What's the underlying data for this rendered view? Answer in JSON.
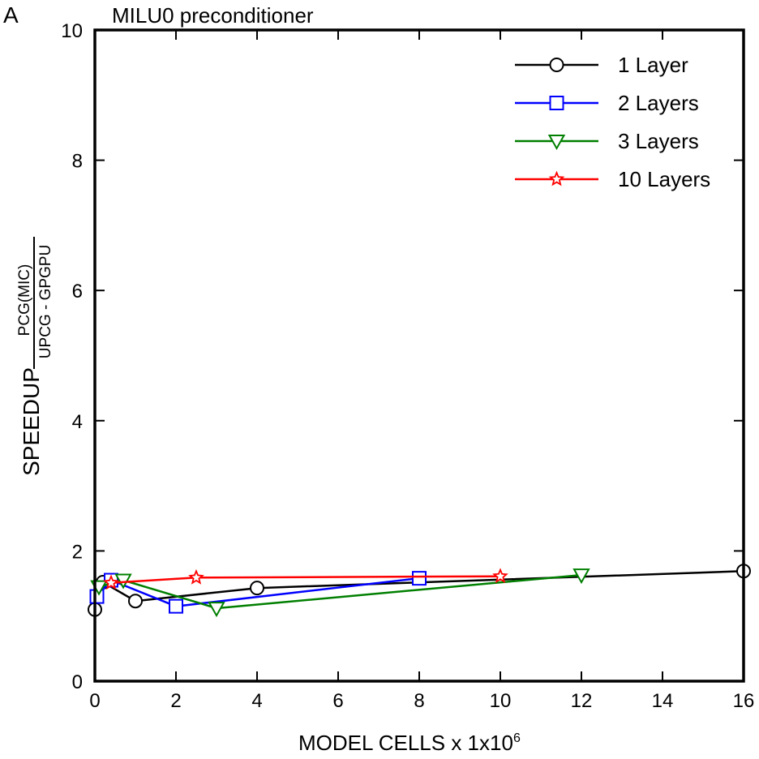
{
  "panel_label": "A",
  "chart_data": {
    "type": "line",
    "title": "MILU0 preconditioner",
    "xlabel": "MODEL CELLS x 1x10",
    "xlabel_sup": "6",
    "ylabel": "SPEEDUP",
    "ylabel_fraction": {
      "numerator": "PCG(MIC)",
      "denominator": "UPCG - GPGPU"
    },
    "xlim": [
      0,
      16
    ],
    "ylim": [
      0,
      10
    ],
    "x_ticks": [
      0,
      2,
      4,
      6,
      8,
      10,
      12,
      14,
      16
    ],
    "y_ticks": [
      0,
      2,
      4,
      6,
      8,
      10
    ],
    "grid": false,
    "legend_position": "top-right",
    "series": [
      {
        "name": "1 Layer",
        "color": "#000000",
        "marker": "circle",
        "x": [
          0,
          0.2,
          1,
          4,
          16
        ],
        "y": [
          1.1,
          1.52,
          1.23,
          1.43,
          1.69
        ]
      },
      {
        "name": "2 Layers",
        "color": "#0000ff",
        "marker": "square",
        "x": [
          0.05,
          0.4,
          2,
          8
        ],
        "y": [
          1.3,
          1.55,
          1.15,
          1.58
        ]
      },
      {
        "name": "3 Layers",
        "color": "#007f00",
        "marker": "triangle-down",
        "x": [
          0.1,
          0.7,
          3,
          12
        ],
        "y": [
          1.45,
          1.55,
          1.12,
          1.63
        ]
      },
      {
        "name": "10 Layers",
        "color": "#ff0000",
        "marker": "star",
        "x": [
          0.4,
          2.5,
          10
        ],
        "y": [
          1.51,
          1.59,
          1.61
        ]
      }
    ]
  }
}
